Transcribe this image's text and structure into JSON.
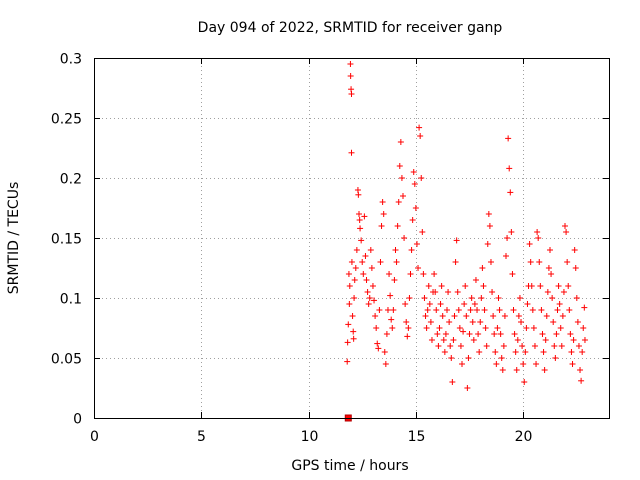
{
  "chart_data": {
    "type": "scatter",
    "title": "Day 094 of 2022, SRMTID for receiver ganp",
    "xlabel": "GPS time / hours",
    "ylabel": "SRMTID / TECUs",
    "xlim": [
      0,
      24
    ],
    "ylim": [
      0,
      0.3
    ],
    "xticks": [
      0,
      5,
      10,
      15,
      20
    ],
    "xtick_labels": [
      "0",
      "5",
      "10",
      "15",
      "20"
    ],
    "yticks": [
      0,
      0.05,
      0.1,
      0.15,
      0.2,
      0.25,
      0.3
    ],
    "ytick_labels": [
      "0",
      "0.05",
      "0.1",
      "0.15",
      "0.2",
      "0.25",
      "0.3"
    ],
    "grid": true,
    "marker": "+",
    "series_color": "#ff0000",
    "special_marker": {
      "shape": "square",
      "x": 11.85,
      "y": 0.0
    },
    "series": [
      {
        "name": "SRMTID",
        "points": [
          [
            11.8,
            0.047
          ],
          [
            11.82,
            0.063
          ],
          [
            11.85,
            0.078
          ],
          [
            11.88,
            0.12
          ],
          [
            11.9,
            0.095
          ],
          [
            11.92,
            0.11
          ],
          [
            11.95,
            0.295
          ],
          [
            11.96,
            0.285
          ],
          [
            11.98,
            0.274
          ],
          [
            12.0,
            0.27
          ],
          [
            12.0,
            0.221
          ],
          [
            12.02,
            0.13
          ],
          [
            12.05,
            0.085
          ],
          [
            12.08,
            0.072
          ],
          [
            12.1,
            0.066
          ],
          [
            12.12,
            0.1
          ],
          [
            12.15,
            0.115
          ],
          [
            12.2,
            0.125
          ],
          [
            12.25,
            0.14
          ],
          [
            12.3,
            0.19
          ],
          [
            12.32,
            0.186
          ],
          [
            12.35,
            0.17
          ],
          [
            12.38,
            0.165
          ],
          [
            12.4,
            0.158
          ],
          [
            12.45,
            0.148
          ],
          [
            12.5,
            0.13
          ],
          [
            12.55,
            0.12
          ],
          [
            12.6,
            0.168
          ],
          [
            12.65,
            0.135
          ],
          [
            12.7,
            0.115
          ],
          [
            12.75,
            0.105
          ],
          [
            12.8,
            0.095
          ],
          [
            12.85,
            0.1
          ],
          [
            12.9,
            0.14
          ],
          [
            12.95,
            0.125
          ],
          [
            13.0,
            0.11
          ],
          [
            13.05,
            0.098
          ],
          [
            13.1,
            0.085
          ],
          [
            13.15,
            0.075
          ],
          [
            13.2,
            0.062
          ],
          [
            13.25,
            0.058
          ],
          [
            13.3,
            0.09
          ],
          [
            13.35,
            0.13
          ],
          [
            13.4,
            0.16
          ],
          [
            13.45,
            0.18
          ],
          [
            13.5,
            0.17
          ],
          [
            13.55,
            0.055
          ],
          [
            13.6,
            0.045
          ],
          [
            13.65,
            0.07
          ],
          [
            13.7,
            0.09
          ],
          [
            13.75,
            0.12
          ],
          [
            13.8,
            0.102
          ],
          [
            13.85,
            0.082
          ],
          [
            13.9,
            0.075
          ],
          [
            13.95,
            0.09
          ],
          [
            14.0,
            0.115
          ],
          [
            14.05,
            0.14
          ],
          [
            14.1,
            0.13
          ],
          [
            14.15,
            0.16
          ],
          [
            14.2,
            0.18
          ],
          [
            14.25,
            0.21
          ],
          [
            14.3,
            0.23
          ],
          [
            14.35,
            0.2
          ],
          [
            14.4,
            0.185
          ],
          [
            14.45,
            0.15
          ],
          [
            14.5,
            0.095
          ],
          [
            14.55,
            0.08
          ],
          [
            14.6,
            0.068
          ],
          [
            14.65,
            0.075
          ],
          [
            14.7,
            0.1
          ],
          [
            14.75,
            0.12
          ],
          [
            14.8,
            0.14
          ],
          [
            14.85,
            0.165
          ],
          [
            14.9,
            0.205
          ],
          [
            14.95,
            0.195
          ],
          [
            15.0,
            0.175
          ],
          [
            15.05,
            0.145
          ],
          [
            15.1,
            0.125
          ],
          [
            15.15,
            0.242
          ],
          [
            15.2,
            0.235
          ],
          [
            15.25,
            0.2
          ],
          [
            15.3,
            0.155
          ],
          [
            15.35,
            0.12
          ],
          [
            15.4,
            0.1
          ],
          [
            15.45,
            0.085
          ],
          [
            15.5,
            0.075
          ],
          [
            15.55,
            0.09
          ],
          [
            15.6,
            0.11
          ],
          [
            15.65,
            0.095
          ],
          [
            15.7,
            0.08
          ],
          [
            15.75,
            0.065
          ],
          [
            15.8,
            0.105
          ],
          [
            15.85,
            0.12
          ],
          [
            15.9,
            0.105
          ],
          [
            15.95,
            0.09
          ],
          [
            16.0,
            0.07
          ],
          [
            16.05,
            0.06
          ],
          [
            16.1,
            0.075
          ],
          [
            16.15,
            0.095
          ],
          [
            16.2,
            0.11
          ],
          [
            16.25,
            0.085
          ],
          [
            16.3,
            0.065
          ],
          [
            16.35,
            0.055
          ],
          [
            16.4,
            0.07
          ],
          [
            16.45,
            0.09
          ],
          [
            16.5,
            0.105
          ],
          [
            16.55,
            0.08
          ],
          [
            16.6,
            0.06
          ],
          [
            16.65,
            0.05
          ],
          [
            16.7,
            0.03
          ],
          [
            16.75,
            0.065
          ],
          [
            16.8,
            0.085
          ],
          [
            16.85,
            0.13
          ],
          [
            16.9,
            0.148
          ],
          [
            16.95,
            0.105
          ],
          [
            17.0,
            0.09
          ],
          [
            17.05,
            0.075
          ],
          [
            17.1,
            0.06
          ],
          [
            17.15,
            0.045
          ],
          [
            17.2,
            0.072
          ],
          [
            17.25,
            0.095
          ],
          [
            17.3,
            0.11
          ],
          [
            17.35,
            0.085
          ],
          [
            17.4,
            0.025
          ],
          [
            17.45,
            0.05
          ],
          [
            17.5,
            0.07
          ],
          [
            17.55,
            0.09
          ],
          [
            17.6,
            0.1
          ],
          [
            17.65,
            0.08
          ],
          [
            17.7,
            0.065
          ],
          [
            17.75,
            0.095
          ],
          [
            17.8,
            0.115
          ],
          [
            17.85,
            0.09
          ],
          [
            17.9,
            0.07
          ],
          [
            17.95,
            0.055
          ],
          [
            18.0,
            0.08
          ],
          [
            18.05,
            0.1
          ],
          [
            18.1,
            0.125
          ],
          [
            18.15,
            0.11
          ],
          [
            18.2,
            0.09
          ],
          [
            18.25,
            0.075
          ],
          [
            18.3,
            0.06
          ],
          [
            18.35,
            0.145
          ],
          [
            18.4,
            0.17
          ],
          [
            18.45,
            0.16
          ],
          [
            18.5,
            0.13
          ],
          [
            18.55,
            0.105
          ],
          [
            18.6,
            0.085
          ],
          [
            18.65,
            0.07
          ],
          [
            18.7,
            0.055
          ],
          [
            18.75,
            0.045
          ],
          [
            18.8,
            0.075
          ],
          [
            18.85,
            0.1
          ],
          [
            18.9,
            0.09
          ],
          [
            18.95,
            0.07
          ],
          [
            19.0,
            0.05
          ],
          [
            19.05,
            0.04
          ],
          [
            19.1,
            0.06
          ],
          [
            19.15,
            0.085
          ],
          [
            19.2,
            0.135
          ],
          [
            19.25,
            0.15
          ],
          [
            19.3,
            0.233
          ],
          [
            19.35,
            0.208
          ],
          [
            19.4,
            0.188
          ],
          [
            19.45,
            0.155
          ],
          [
            19.5,
            0.12
          ],
          [
            19.55,
            0.09
          ],
          [
            19.6,
            0.07
          ],
          [
            19.65,
            0.055
          ],
          [
            19.7,
            0.04
          ],
          [
            19.75,
            0.065
          ],
          [
            19.8,
            0.085
          ],
          [
            19.85,
            0.1
          ],
          [
            19.9,
            0.08
          ],
          [
            19.95,
            0.06
          ],
          [
            20.0,
            0.045
          ],
          [
            20.05,
            0.03
          ],
          [
            20.1,
            0.055
          ],
          [
            20.15,
            0.075
          ],
          [
            20.2,
            0.095
          ],
          [
            20.25,
            0.11
          ],
          [
            20.3,
            0.145
          ],
          [
            20.35,
            0.13
          ],
          [
            20.4,
            0.11
          ],
          [
            20.45,
            0.09
          ],
          [
            20.5,
            0.075
          ],
          [
            20.55,
            0.06
          ],
          [
            20.6,
            0.045
          ],
          [
            20.65,
            0.155
          ],
          [
            20.7,
            0.15
          ],
          [
            20.75,
            0.13
          ],
          [
            20.8,
            0.11
          ],
          [
            20.85,
            0.09
          ],
          [
            20.9,
            0.07
          ],
          [
            20.95,
            0.055
          ],
          [
            21.0,
            0.04
          ],
          [
            21.05,
            0.065
          ],
          [
            21.1,
            0.085
          ],
          [
            21.15,
            0.105
          ],
          [
            21.2,
            0.125
          ],
          [
            21.25,
            0.14
          ],
          [
            21.3,
            0.12
          ],
          [
            21.35,
            0.1
          ],
          [
            21.4,
            0.08
          ],
          [
            21.45,
            0.06
          ],
          [
            21.5,
            0.05
          ],
          [
            21.55,
            0.07
          ],
          [
            21.6,
            0.09
          ],
          [
            21.65,
            0.11
          ],
          [
            21.7,
            0.095
          ],
          [
            21.75,
            0.075
          ],
          [
            21.8,
            0.06
          ],
          [
            21.85,
            0.085
          ],
          [
            21.9,
            0.105
          ],
          [
            21.95,
            0.16
          ],
          [
            22.0,
            0.155
          ],
          [
            22.05,
            0.13
          ],
          [
            22.1,
            0.11
          ],
          [
            22.15,
            0.09
          ],
          [
            22.2,
            0.07
          ],
          [
            22.25,
            0.055
          ],
          [
            22.3,
            0.045
          ],
          [
            22.35,
            0.065
          ],
          [
            22.4,
            0.14
          ],
          [
            22.45,
            0.125
          ],
          [
            22.5,
            0.1
          ],
          [
            22.55,
            0.08
          ],
          [
            22.6,
            0.06
          ],
          [
            22.65,
            0.04
          ],
          [
            22.7,
            0.031
          ],
          [
            22.75,
            0.055
          ],
          [
            22.8,
            0.075
          ],
          [
            22.85,
            0.092
          ],
          [
            22.88,
            0.065
          ]
        ]
      }
    ]
  }
}
